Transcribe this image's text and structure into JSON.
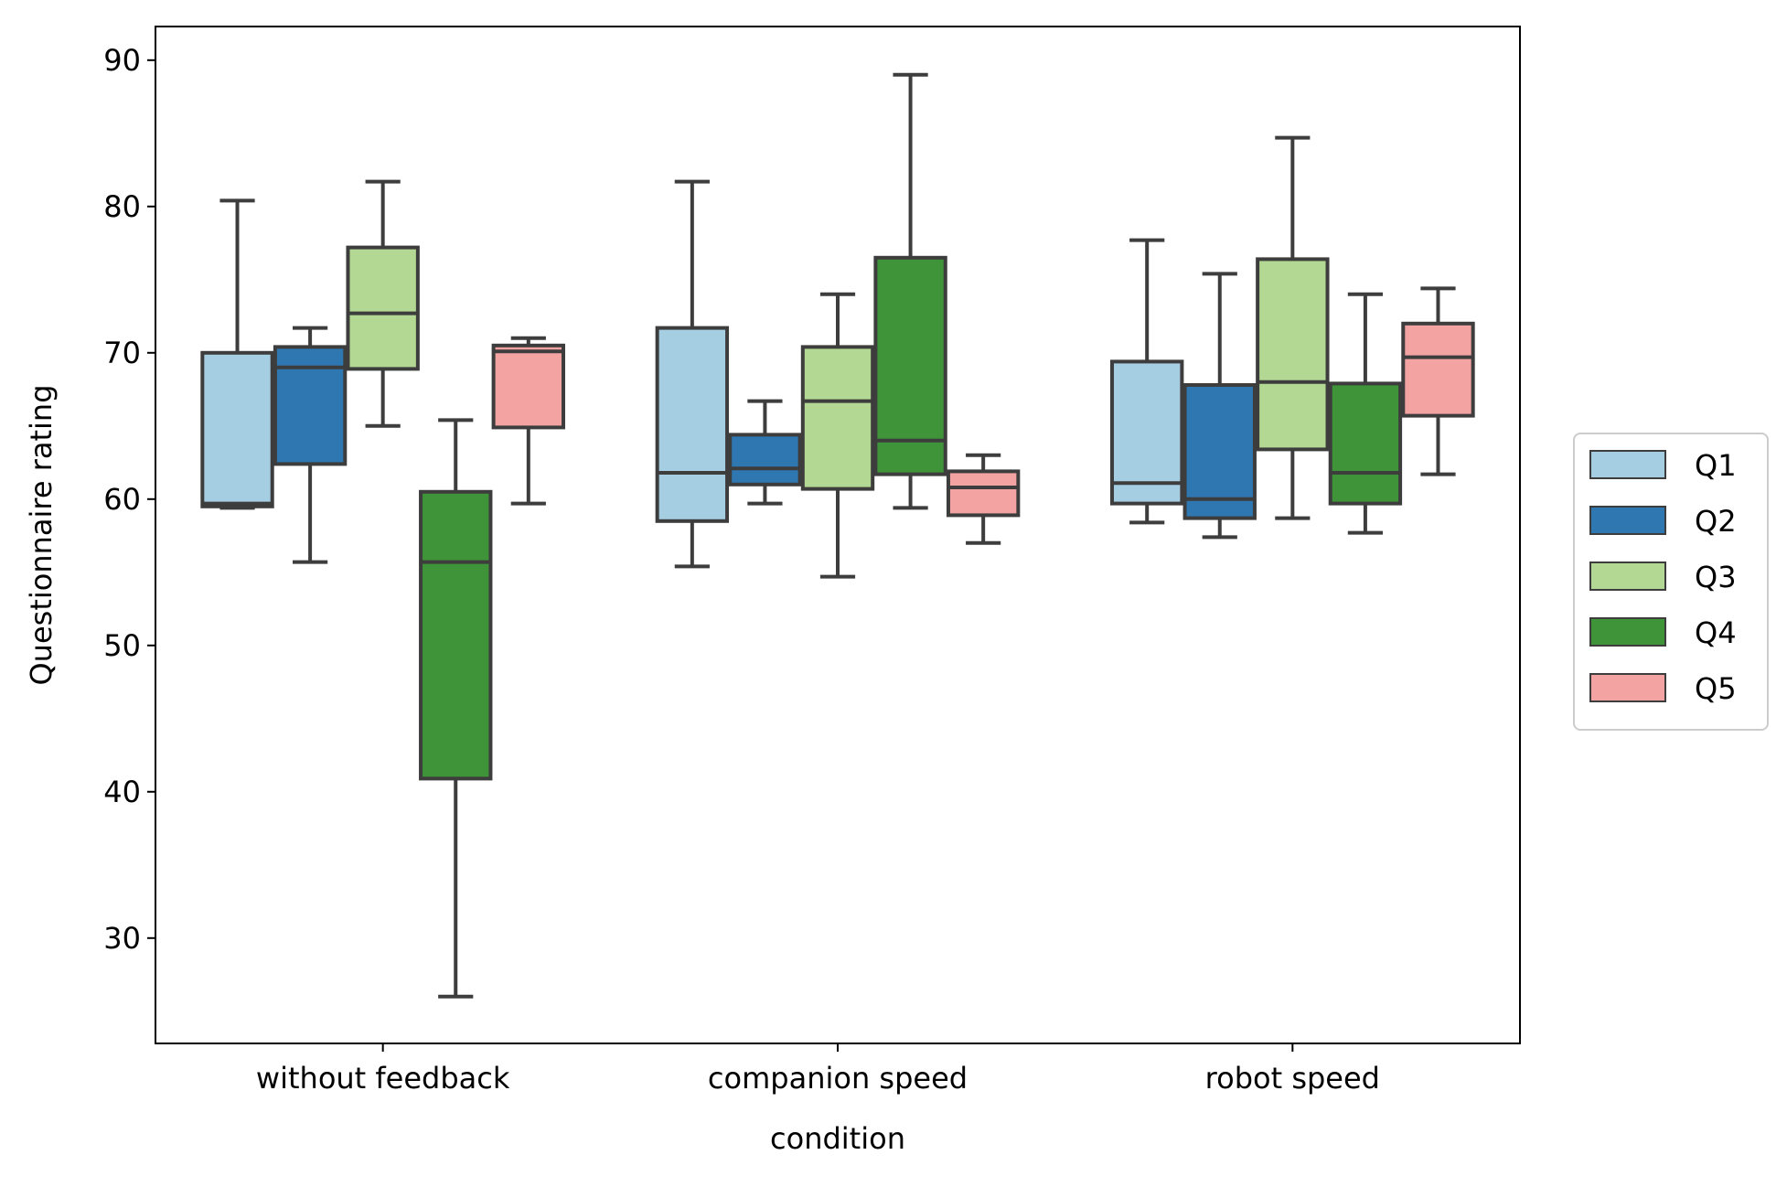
{
  "chart_data": {
    "type": "boxplot",
    "title": "",
    "xlabel": "condition",
    "ylabel": "Questionnaire rating",
    "ylim": [
      22.8,
      92.3
    ],
    "yticks": [
      30,
      40,
      50,
      60,
      70,
      80,
      90
    ],
    "grid": false,
    "legend_position": "right",
    "categories": [
      "without feedback",
      "companion speed",
      "robot speed"
    ],
    "series": [
      {
        "name": "Q1",
        "color": "#a6cee3",
        "boxes": [
          {
            "whislo": 59.4,
            "q1": 59.5,
            "med": 59.7,
            "q3": 70.0,
            "whishi": 80.4
          },
          {
            "whislo": 55.4,
            "q1": 58.5,
            "med": 61.8,
            "q3": 71.7,
            "whishi": 81.7
          },
          {
            "whislo": 58.4,
            "q1": 59.7,
            "med": 61.1,
            "q3": 69.4,
            "whishi": 77.7
          }
        ]
      },
      {
        "name": "Q2",
        "color": "#2e77b0",
        "boxes": [
          {
            "whislo": 55.7,
            "q1": 62.4,
            "med": 69.0,
            "q3": 70.4,
            "whishi": 71.7
          },
          {
            "whislo": 59.7,
            "q1": 61.0,
            "med": 62.1,
            "q3": 64.4,
            "whishi": 66.7
          },
          {
            "whislo": 57.4,
            "q1": 58.7,
            "med": 60.0,
            "q3": 67.8,
            "whishi": 75.4
          }
        ]
      },
      {
        "name": "Q3",
        "color": "#b2d893",
        "boxes": [
          {
            "whislo": 65.0,
            "q1": 68.9,
            "med": 72.7,
            "q3": 77.2,
            "whishi": 81.7
          },
          {
            "whislo": 54.7,
            "q1": 60.7,
            "med": 66.7,
            "q3": 70.4,
            "whishi": 74.0
          },
          {
            "whislo": 58.7,
            "q1": 63.4,
            "med": 68.0,
            "q3": 76.4,
            "whishi": 84.7
          }
        ]
      },
      {
        "name": "Q4",
        "color": "#3f9338",
        "boxes": [
          {
            "whislo": 26.0,
            "q1": 40.9,
            "med": 55.7,
            "q3": 60.5,
            "whishi": 65.4
          },
          {
            "whislo": 59.4,
            "q1": 61.7,
            "med": 64.0,
            "q3": 76.5,
            "whishi": 89.0
          },
          {
            "whislo": 57.7,
            "q1": 59.7,
            "med": 61.8,
            "q3": 67.9,
            "whishi": 74.0
          }
        ]
      },
      {
        "name": "Q5",
        "color": "#f2a3a2",
        "boxes": [
          {
            "whislo": 59.7,
            "q1": 64.9,
            "med": 70.1,
            "q3": 70.5,
            "whishi": 71.0
          },
          {
            "whislo": 57.0,
            "q1": 58.9,
            "med": 60.8,
            "q3": 61.9,
            "whishi": 63.0
          },
          {
            "whislo": 61.7,
            "q1": 65.7,
            "med": 69.7,
            "q3": 72.0,
            "whishi": 74.4
          }
        ]
      }
    ]
  }
}
